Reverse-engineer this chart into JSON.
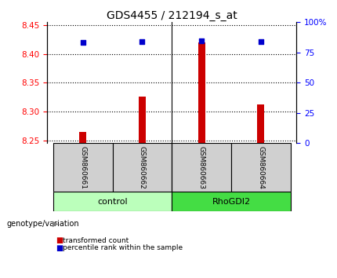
{
  "title": "GDS4455 / 212194_s_at",
  "samples": [
    "GSM860661",
    "GSM860662",
    "GSM860663",
    "GSM860664"
  ],
  "bar_values": [
    8.265,
    8.326,
    8.42,
    8.312
  ],
  "percentile_values": [
    83.5,
    84.0,
    84.5,
    84.0
  ],
  "bar_color": "#cc0000",
  "dot_color": "#0000cc",
  "ylim_left": [
    8.245,
    8.455
  ],
  "ylim_right": [
    0,
    100
  ],
  "yticks_left": [
    8.25,
    8.3,
    8.35,
    8.4,
    8.45
  ],
  "yticks_right": [
    0,
    25,
    50,
    75,
    100
  ],
  "ytick_labels_right": [
    "0",
    "25",
    "50",
    "75",
    "100%"
  ],
  "groups": [
    {
      "name": "control",
      "samples": [
        0,
        1
      ],
      "color": "#bbffbb"
    },
    {
      "name": "RhoGDI2",
      "samples": [
        2,
        3
      ],
      "color": "#44dd44"
    }
  ],
  "group_label": "genotype/variation",
  "legend_items": [
    {
      "label": "transformed count",
      "color": "#cc0000"
    },
    {
      "label": "percentile rank within the sample",
      "color": "#0000cc"
    }
  ],
  "bar_width": 0.12,
  "baseline": 8.245,
  "plot_bg": "#ffffff",
  "sample_box_color": "#d0d0d0",
  "title_fontsize": 10,
  "tick_fontsize": 7.5,
  "label_fontsize": 7.5
}
